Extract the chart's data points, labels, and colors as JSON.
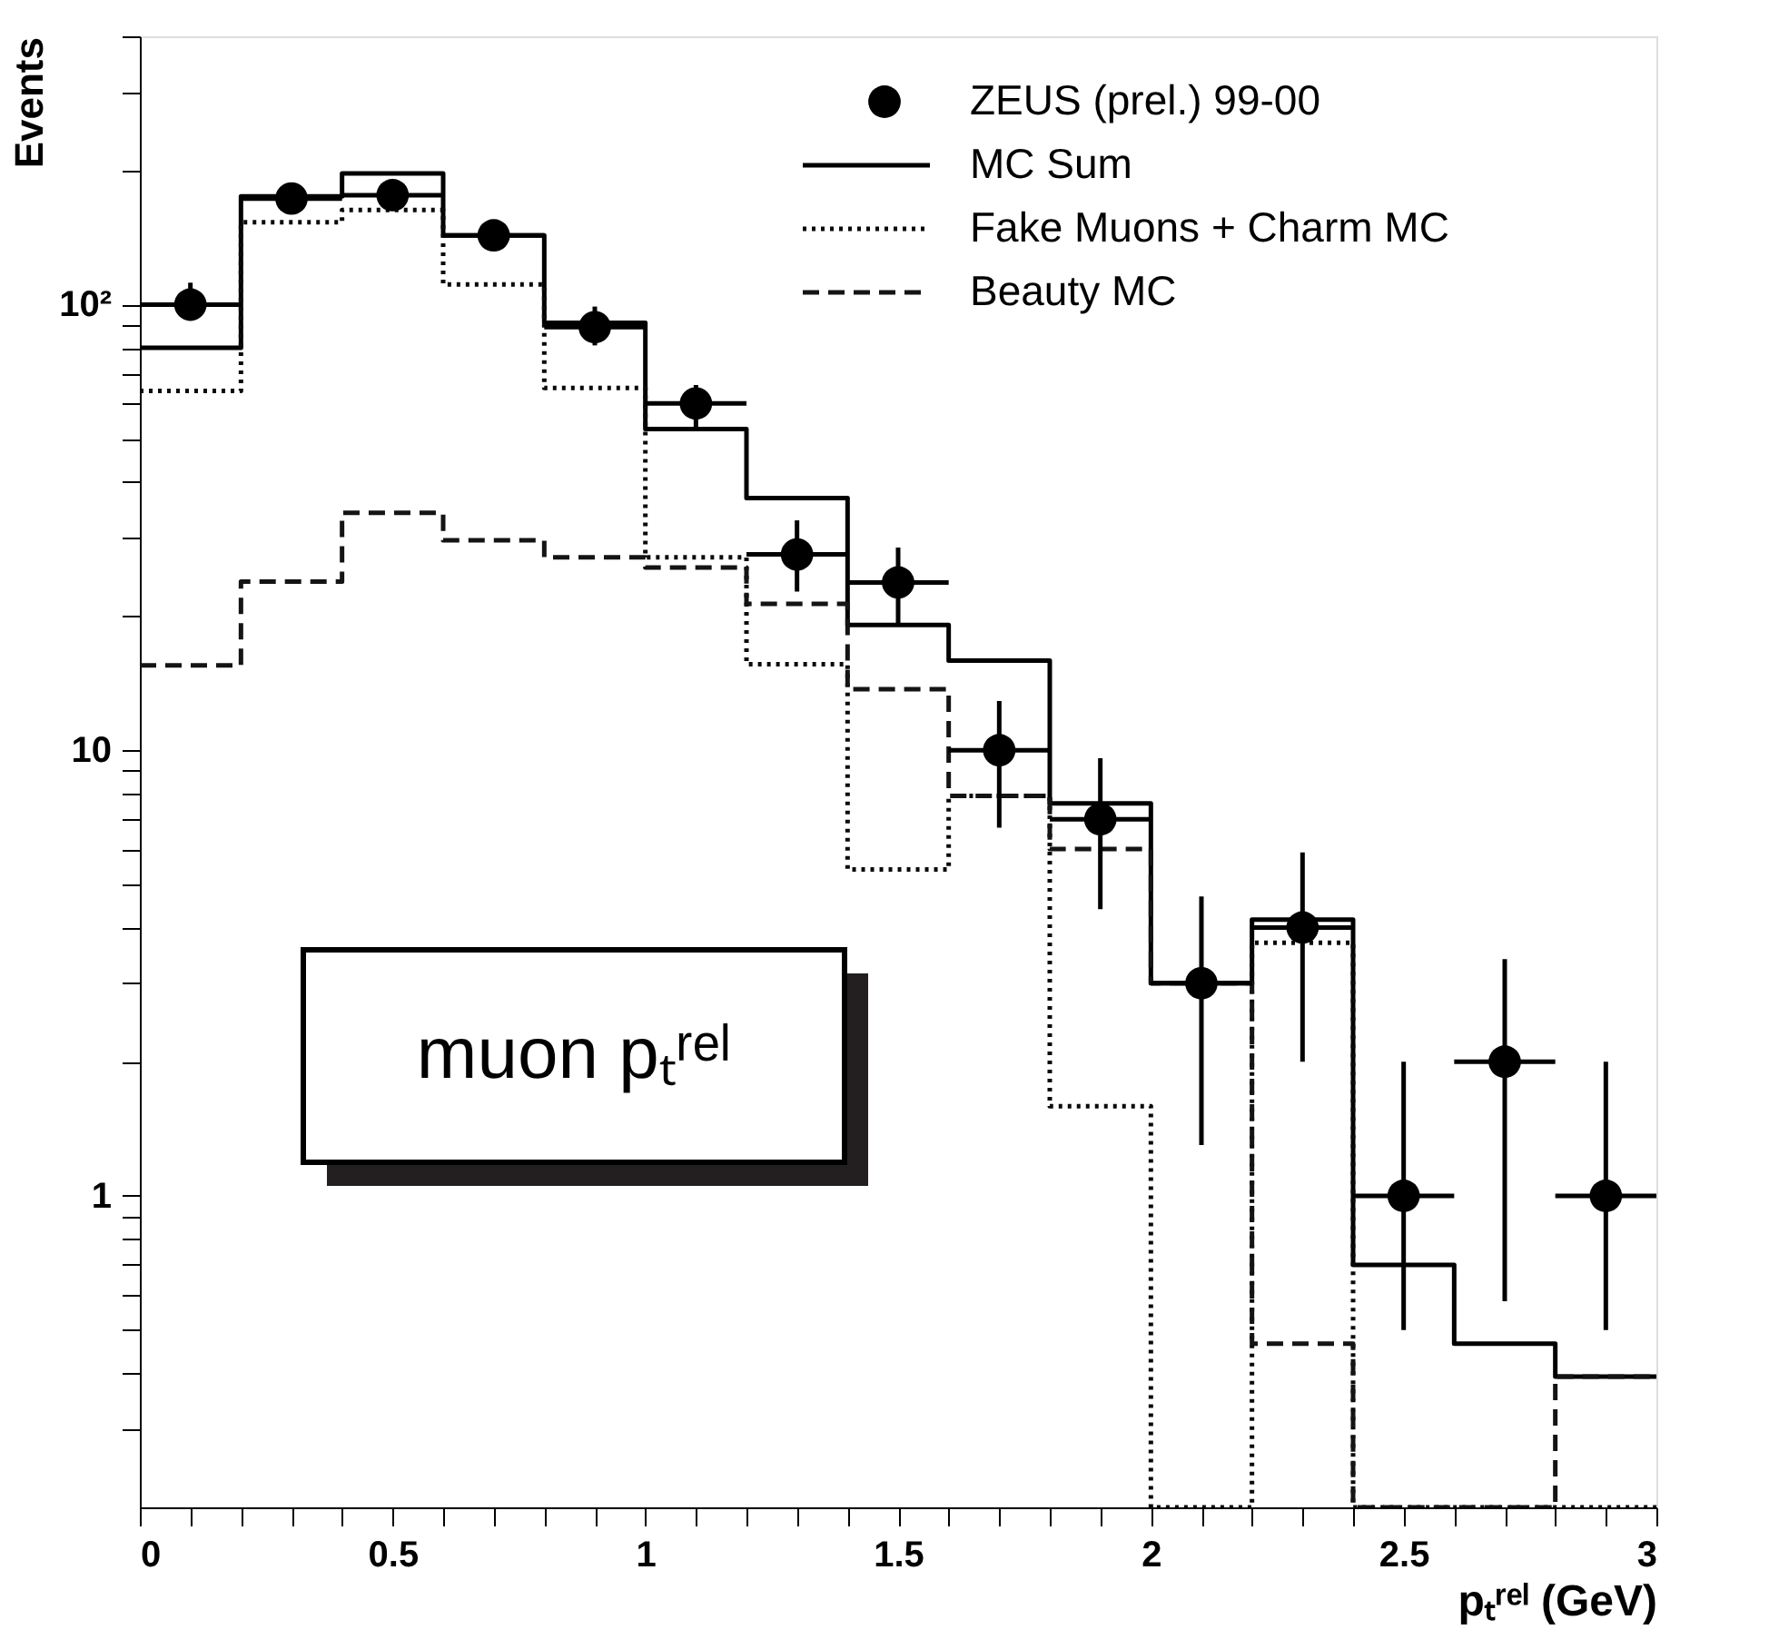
{
  "chart_data": {
    "type": "histogram",
    "xlabel": "pₜʳᵉˡ (GeV)",
    "ylabel": "Events",
    "bins": [
      0,
      0.2,
      0.4,
      0.6,
      0.8,
      1.0,
      1.2,
      1.4,
      1.6,
      1.8,
      2.0,
      2.2,
      2.4,
      2.6,
      2.8,
      3.0
    ],
    "series": [
      {
        "name": "ZEUS (prel.) 99-00",
        "type": "scatter",
        "color": "#000000",
        "marker": "circle",
        "x": [
          0.1,
          0.3,
          0.5,
          0.7,
          0.9,
          1.1,
          1.3,
          1.5,
          1.7,
          1.9,
          2.1,
          2.3,
          2.5,
          2.7,
          2.9
        ],
        "values": [
          100,
          173,
          176,
          143,
          89,
          60,
          27.5,
          23.8,
          10,
          7,
          3,
          4,
          1,
          2,
          1
        ],
        "errors": [
          [
            92,
            112
          ],
          null,
          null,
          null,
          [
            81,
            99
          ],
          [
            52,
            66
          ],
          [
            22.7,
            32.8
          ],
          [
            19,
            28.5
          ],
          [
            6.7,
            12.9
          ],
          [
            4.4,
            9.6
          ],
          [
            1.3,
            4.7
          ],
          [
            2.0,
            5.9
          ],
          [
            0.5,
            2.0
          ],
          [
            0.58,
            3.4
          ],
          [
            0.5,
            2.0
          ]
        ],
        "xerrors": [
          0.1,
          0.1,
          0.1,
          0.1,
          0.1,
          0.1,
          0.1,
          0.1,
          0.1,
          0.1,
          0.1,
          0.1,
          0.1,
          0.1,
          0.1
        ]
      },
      {
        "name": "MC Sum",
        "type": "histogram",
        "color": "#000000",
        "line_style": "solid",
        "values": [
          80,
          175,
          197,
          143,
          91,
          52.6,
          36.8,
          19.1,
          15.9,
          7.6,
          3.0,
          4.17,
          0.7,
          0.466,
          0.393
        ]
      },
      {
        "name": "Fake Muons + Charm MC",
        "type": "histogram",
        "color": "#0a0a0a",
        "line_style": "dotted",
        "values": [
          64,
          153,
          163,
          111,
          65,
          27.1,
          15.6,
          5.4,
          7.9,
          1.59,
          null,
          3.7,
          null,
          null,
          null
        ]
      },
      {
        "name": "Beauty MC",
        "type": "histogram",
        "color": "#141414",
        "line_style": "dashed",
        "values": [
          15.5,
          23.9,
          34.1,
          29.6,
          27.1,
          25.7,
          21.3,
          13.7,
          7.9,
          6.0,
          3.0,
          0.466,
          null,
          null,
          0.393
        ]
      }
    ],
    "annotations": [
      "muon pₜʳᵉˡ"
    ],
    "log": true,
    "xlim": [
      0,
      3
    ],
    "ylim": [
      0.2,
      400
    ],
    "xticks": [
      0,
      {
        "value": 0.1,
        "label": null
      },
      {
        "value": 0.2,
        "label": null
      },
      {
        "value": 0.3,
        "label": null
      },
      {
        "value": 0.4,
        "label": null
      },
      0.5,
      {
        "value": 0.6,
        "label": null
      },
      {
        "value": 0.7,
        "label": null
      },
      {
        "value": 0.8,
        "label": null
      },
      {
        "value": 0.9,
        "label": null
      },
      1,
      {
        "value": 1.1,
        "label": null
      },
      {
        "value": 1.2,
        "label": null
      },
      {
        "value": 1.3,
        "label": null
      },
      {
        "value": 1.4,
        "label": null
      },
      1.5,
      {
        "value": 1.6,
        "label": null
      },
      {
        "value": 1.7,
        "label": null
      },
      {
        "value": 1.8,
        "label": null
      },
      {
        "value": 1.9,
        "label": null
      },
      2,
      {
        "value": 2.1,
        "label": null
      },
      {
        "value": 2.2,
        "label": null
      },
      {
        "value": 2.3,
        "label": null
      },
      {
        "value": 2.4,
        "label": null
      },
      2.5,
      {
        "value": 2.6,
        "label": null
      },
      {
        "value": 2.7,
        "label": null
      },
      {
        "value": 2.8,
        "label": null
      },
      {
        "value": 2.9,
        "label": null
      },
      3
    ],
    "yticks": [
      {
        "value": 0.3,
        "label": null
      },
      {
        "value": 0.4,
        "label": null
      },
      {
        "value": 0.5,
        "label": null
      },
      {
        "value": 0.6,
        "label": null
      },
      {
        "value": 0.7,
        "label": null
      },
      {
        "value": 0.8,
        "label": null
      },
      {
        "value": 0.9,
        "label": null
      },
      1,
      {
        "value": 2,
        "label": null
      },
      {
        "value": 3,
        "label": null
      },
      {
        "value": 4,
        "label": null
      },
      {
        "value": 5,
        "label": null
      },
      {
        "value": 6,
        "label": null
      },
      {
        "value": 7,
        "label": null
      },
      {
        "value": 8,
        "label": null
      },
      {
        "value": 9,
        "label": null
      },
      10,
      {
        "value": 20,
        "label": null
      },
      {
        "value": 30,
        "label": null
      },
      {
        "value": 40,
        "label": null
      },
      {
        "value": 50,
        "label": null
      },
      {
        "value": 60,
        "label": null
      },
      {
        "value": 70,
        "label": null
      },
      {
        "value": 80,
        "label": null
      },
      {
        "value": 90,
        "label": null
      },
      {
        "value": 100,
        "label": "10²"
      },
      {
        "value": 200,
        "label": null
      },
      {
        "value": 300,
        "label": null
      },
      {
        "value": 400,
        "label": null
      }
    ],
    "legend": "top right"
  }
}
